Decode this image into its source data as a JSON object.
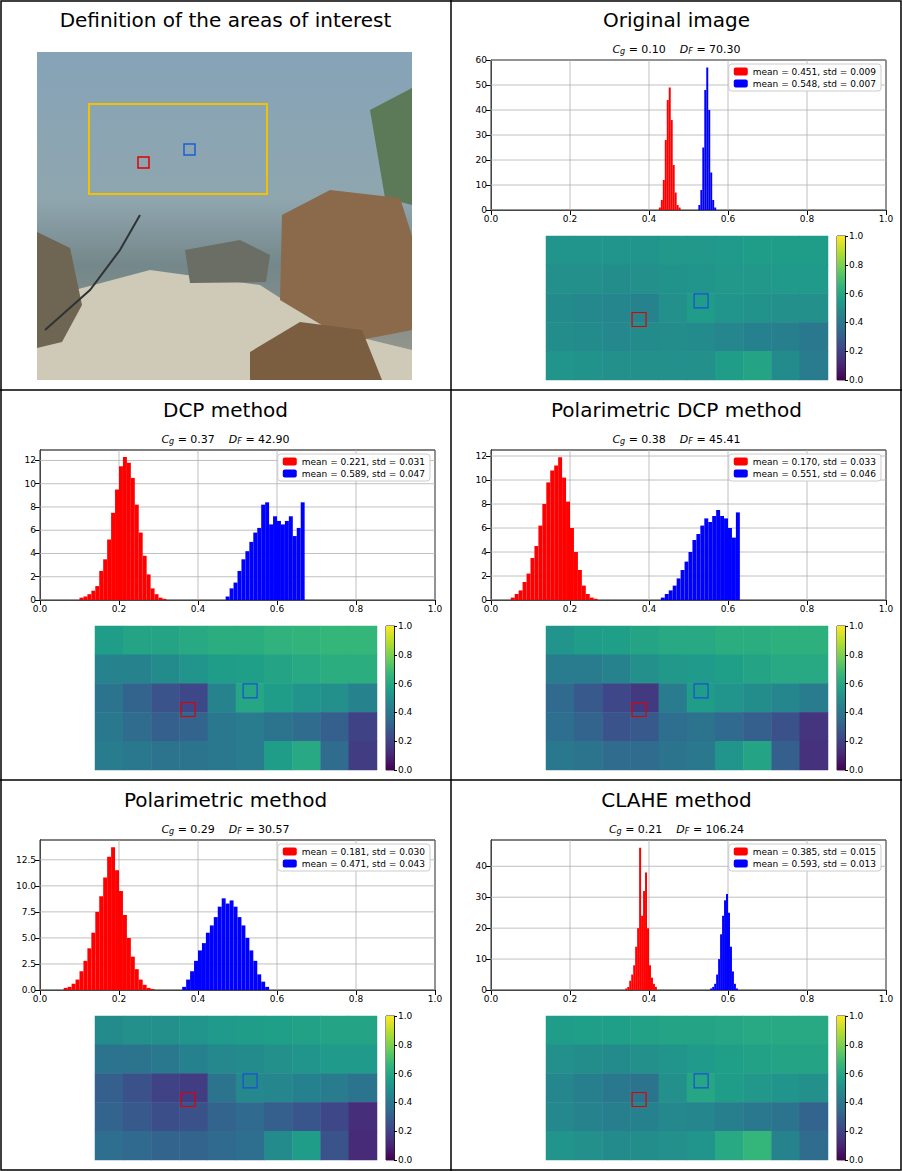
{
  "image_panel": {
    "title": "Definition of the areas of interest"
  },
  "chart_data": [
    {
      "type": "histogram",
      "title": "Original image",
      "metrics": [
        {
          "symbol": "C",
          "subscript": "g",
          "text": "= 0.10"
        },
        {
          "symbol": "D",
          "subscript": "F",
          "text": "= 70.30"
        }
      ],
      "xlim": [
        0,
        1
      ],
      "xticks": [
        {
          "value": 0,
          "label": "0.0"
        },
        0.2,
        0.4,
        0.6,
        0.8,
        {
          "value": 1,
          "label": "1.0"
        }
      ],
      "ylim": [
        0,
        60
      ],
      "yticks": [
        0,
        10,
        20,
        30,
        40,
        50,
        60
      ],
      "grid": true,
      "legend": "upper right",
      "series": [
        {
          "name": "mean = 0.451, std = 0.009",
          "color": "#ff0000",
          "bins": [
            0.425,
            0.43,
            0.435,
            0.44,
            0.445,
            0.45,
            0.455,
            0.46,
            0.465,
            0.47,
            0.475,
            0.48
          ],
          "values": [
            1,
            4,
            12,
            28,
            44,
            49,
            36,
            18,
            7,
            2,
            1
          ]
        },
        {
          "name": "mean = 0.548, std = 0.007",
          "color": "#0000ff",
          "bins": [
            0.525,
            0.53,
            0.535,
            0.54,
            0.545,
            0.55,
            0.555,
            0.56,
            0.565,
            0.57
          ],
          "values": [
            2,
            8,
            25,
            48,
            57,
            40,
            15,
            4,
            1
          ]
        }
      ],
      "heatmap": {
        "cells": [
          [
            0.52,
            0.52,
            0.52,
            0.52,
            0.53,
            0.53,
            0.54,
            0.55,
            0.55,
            0.55
          ],
          [
            0.5,
            0.5,
            0.49,
            0.5,
            0.51,
            0.52,
            0.53,
            0.53,
            0.54,
            0.54
          ],
          [
            0.48,
            0.47,
            0.46,
            0.45,
            0.5,
            0.55,
            0.52,
            0.51,
            0.5,
            0.5
          ],
          [
            0.49,
            0.48,
            0.47,
            0.48,
            0.49,
            0.48,
            0.46,
            0.44,
            0.43,
            0.4
          ],
          [
            0.52,
            0.51,
            0.5,
            0.5,
            0.5,
            0.5,
            0.55,
            0.58,
            0.48,
            0.42
          ]
        ],
        "colorbar_range": [
          0,
          1
        ],
        "colorbar_ticks": [
          {
            "value": 0,
            "label": "0.0"
          },
          0.2,
          0.4,
          0.6,
          0.8,
          {
            "value": 1,
            "label": "1.0"
          }
        ]
      }
    },
    {
      "type": "histogram",
      "title": "DCP method",
      "metrics": [
        {
          "symbol": "C",
          "subscript": "g",
          "text": "= 0.37"
        },
        {
          "symbol": "D",
          "subscript": "F",
          "text": "= 42.90"
        }
      ],
      "xlim": [
        0,
        1
      ],
      "xticks": [
        {
          "value": 0,
          "label": "0.0"
        },
        0.2,
        0.4,
        0.6,
        0.8,
        {
          "value": 1,
          "label": "1.0"
        }
      ],
      "ylim": [
        0,
        12.9
      ],
      "yticks": [
        0,
        2,
        4,
        6,
        8,
        10,
        12
      ],
      "grid": true,
      "legend": "upper right",
      "series": [
        {
          "name": "mean = 0.221, std = 0.031",
          "color": "#ff0000",
          "bins": [
            0.1,
            0.11,
            0.12,
            0.13,
            0.14,
            0.15,
            0.16,
            0.17,
            0.18,
            0.19,
            0.2,
            0.21,
            0.22,
            0.23,
            0.24,
            0.25,
            0.26,
            0.27,
            0.28,
            0.29,
            0.3,
            0.31,
            0.32
          ],
          "values": [
            0.2,
            0.3,
            0.5,
            0.8,
            1.2,
            2.5,
            3.5,
            5.2,
            7.5,
            9.5,
            11.5,
            12.3,
            11.8,
            10.5,
            8.2,
            5.8,
            3.8,
            2.2,
            1.0,
            0.5,
            0.2,
            0.1
          ]
        },
        {
          "name": "mean = 0.589, std = 0.047",
          "color": "#0000ff",
          "bins": [
            0.47,
            0.48,
            0.49,
            0.5,
            0.51,
            0.52,
            0.53,
            0.54,
            0.55,
            0.56,
            0.57,
            0.58,
            0.59,
            0.6,
            0.61,
            0.62,
            0.63,
            0.64,
            0.65,
            0.66,
            0.67
          ],
          "values": [
            0.3,
            1.0,
            1.5,
            2.5,
            3.5,
            4.2,
            5.0,
            5.8,
            6.2,
            8.2,
            8.4,
            6.5,
            7.2,
            6.8,
            6.5,
            6.8,
            7.2,
            5.5,
            6.2,
            8.4
          ]
        }
      ],
      "heatmap": {
        "cells": [
          [
            0.55,
            0.58,
            0.58,
            0.6,
            0.62,
            0.62,
            0.64,
            0.65,
            0.66,
            0.66
          ],
          [
            0.45,
            0.45,
            0.48,
            0.52,
            0.55,
            0.56,
            0.58,
            0.6,
            0.62,
            0.62
          ],
          [
            0.38,
            0.32,
            0.26,
            0.22,
            0.45,
            0.59,
            0.55,
            0.52,
            0.5,
            0.45
          ],
          [
            0.4,
            0.35,
            0.3,
            0.32,
            0.4,
            0.42,
            0.38,
            0.35,
            0.3,
            0.2
          ],
          [
            0.42,
            0.4,
            0.38,
            0.38,
            0.4,
            0.42,
            0.55,
            0.6,
            0.35,
            0.18
          ]
        ],
        "colorbar_range": [
          0,
          1
        ],
        "colorbar_ticks": [
          {
            "value": 0,
            "label": "0.0"
          },
          0.2,
          0.4,
          0.6,
          0.8,
          {
            "value": 1,
            "label": "1.0"
          }
        ]
      }
    },
    {
      "type": "histogram",
      "title": "Polarimetric DCP method",
      "metrics": [
        {
          "symbol": "C",
          "subscript": "g",
          "text": "= 0.38"
        },
        {
          "symbol": "D",
          "subscript": "F",
          "text": "= 45.41"
        }
      ],
      "xlim": [
        0,
        1
      ],
      "xticks": [
        {
          "value": 0,
          "label": "0.0"
        },
        0.2,
        0.4,
        0.6,
        0.8,
        {
          "value": 1,
          "label": "1.0"
        }
      ],
      "ylim": [
        0,
        12.5
      ],
      "yticks": [
        0,
        2,
        4,
        6,
        8,
        10,
        12
      ],
      "grid": true,
      "legend": "upper right",
      "series": [
        {
          "name": "mean = 0.170, std = 0.033",
          "color": "#ff0000",
          "bins": [
            0.05,
            0.06,
            0.07,
            0.08,
            0.09,
            0.1,
            0.11,
            0.12,
            0.13,
            0.14,
            0.15,
            0.16,
            0.17,
            0.18,
            0.19,
            0.2,
            0.21,
            0.22,
            0.23,
            0.24,
            0.25,
            0.26,
            0.27
          ],
          "values": [
            0.2,
            0.5,
            0.8,
            1.5,
            2.2,
            3.5,
            4.5,
            6.2,
            8.0,
            9.8,
            10.8,
            11.2,
            11.9,
            10.2,
            8.2,
            6.0,
            4.0,
            2.5,
            1.2,
            0.5,
            0.2,
            0.1
          ]
        },
        {
          "name": "mean = 0.551, std = 0.046",
          "color": "#0000ff",
          "bins": [
            0.43,
            0.44,
            0.45,
            0.46,
            0.47,
            0.48,
            0.49,
            0.5,
            0.51,
            0.52,
            0.53,
            0.54,
            0.55,
            0.56,
            0.57,
            0.58,
            0.59,
            0.6,
            0.61,
            0.62,
            0.63
          ],
          "values": [
            0.2,
            0.5,
            0.8,
            1.2,
            1.8,
            2.5,
            3.2,
            4.0,
            5.0,
            5.5,
            6.2,
            6.8,
            6.5,
            7.0,
            7.5,
            7.0,
            6.8,
            6.0,
            5.2,
            7.3
          ]
        }
      ],
      "heatmap": {
        "cells": [
          [
            0.52,
            0.55,
            0.56,
            0.58,
            0.6,
            0.6,
            0.62,
            0.62,
            0.63,
            0.63
          ],
          [
            0.42,
            0.42,
            0.45,
            0.5,
            0.53,
            0.54,
            0.56,
            0.58,
            0.6,
            0.6
          ],
          [
            0.34,
            0.28,
            0.22,
            0.17,
            0.42,
            0.55,
            0.52,
            0.49,
            0.46,
            0.42
          ],
          [
            0.36,
            0.32,
            0.26,
            0.28,
            0.36,
            0.38,
            0.34,
            0.3,
            0.25,
            0.15
          ],
          [
            0.4,
            0.38,
            0.35,
            0.35,
            0.38,
            0.4,
            0.52,
            0.58,
            0.3,
            0.14
          ]
        ],
        "colorbar_range": [
          0,
          1
        ],
        "colorbar_ticks": [
          {
            "value": 0,
            "label": "0.0"
          },
          0.2,
          0.4,
          0.6,
          0.8,
          {
            "value": 1,
            "label": "1.0"
          }
        ]
      }
    },
    {
      "type": "histogram",
      "title": "Polarimetric method",
      "metrics": [
        {
          "symbol": "C",
          "subscript": "g",
          "text": "= 0.29"
        },
        {
          "symbol": "D",
          "subscript": "F",
          "text": "= 30.57"
        }
      ],
      "xlim": [
        0,
        1
      ],
      "xticks": [
        {
          "value": 0,
          "label": "0.0"
        },
        0.2,
        0.4,
        0.6,
        0.8,
        {
          "value": 1,
          "label": "1.0"
        }
      ],
      "ylim": [
        0,
        14.4
      ],
      "yticks": [
        {
          "value": 0,
          "label": "0.0"
        },
        2.5,
        {
          "value": 5,
          "label": "5.0"
        },
        7.5,
        {
          "value": 10,
          "label": "10.0"
        },
        12.5
      ],
      "grid": true,
      "legend": "upper right",
      "series": [
        {
          "name": "mean = 0.181, std = 0.030",
          "color": "#ff0000",
          "bins": [
            0.06,
            0.07,
            0.08,
            0.09,
            0.1,
            0.11,
            0.12,
            0.13,
            0.14,
            0.15,
            0.16,
            0.17,
            0.18,
            0.19,
            0.2,
            0.21,
            0.22,
            0.23,
            0.24,
            0.25,
            0.26,
            0.27,
            0.28,
            0.29
          ],
          "values": [
            0.2,
            0.3,
            0.6,
            1.0,
            1.8,
            2.8,
            4.0,
            5.5,
            7.5,
            9.0,
            10.8,
            12.8,
            13.7,
            11.5,
            9.5,
            7.2,
            5.0,
            3.2,
            2.0,
            1.0,
            0.5,
            0.2,
            0.1
          ]
        },
        {
          "name": "mean = 0.471, std = 0.043",
          "color": "#0000ff",
          "bins": [
            0.36,
            0.37,
            0.38,
            0.39,
            0.4,
            0.41,
            0.42,
            0.43,
            0.44,
            0.45,
            0.46,
            0.47,
            0.48,
            0.49,
            0.5,
            0.51,
            0.52,
            0.53,
            0.54,
            0.55,
            0.56,
            0.57,
            0.58
          ],
          "values": [
            0.3,
            1.0,
            1.8,
            2.8,
            3.8,
            4.5,
            5.5,
            6.2,
            7.0,
            8.0,
            8.8,
            8.3,
            8.6,
            8.0,
            7.0,
            6.2,
            5.0,
            3.8,
            2.8,
            1.5,
            0.8,
            0.3
          ]
        }
      ],
      "heatmap": {
        "cells": [
          [
            0.48,
            0.5,
            0.5,
            0.52,
            0.54,
            0.55,
            0.56,
            0.57,
            0.58,
            0.58
          ],
          [
            0.38,
            0.38,
            0.4,
            0.44,
            0.47,
            0.48,
            0.5,
            0.52,
            0.54,
            0.54
          ],
          [
            0.3,
            0.25,
            0.2,
            0.18,
            0.38,
            0.47,
            0.46,
            0.44,
            0.42,
            0.38
          ],
          [
            0.32,
            0.28,
            0.24,
            0.25,
            0.32,
            0.34,
            0.3,
            0.27,
            0.22,
            0.13
          ],
          [
            0.36,
            0.34,
            0.32,
            0.32,
            0.34,
            0.36,
            0.48,
            0.55,
            0.26,
            0.12
          ]
        ],
        "colorbar_range": [
          0,
          1
        ],
        "colorbar_ticks": [
          {
            "value": 0,
            "label": "0.0"
          },
          0.2,
          0.4,
          0.6,
          0.8,
          {
            "value": 1,
            "label": "1.0"
          }
        ]
      }
    },
    {
      "type": "histogram",
      "title": "CLAHE method",
      "metrics": [
        {
          "symbol": "C",
          "subscript": "g",
          "text": "= 0.21"
        },
        {
          "symbol": "D",
          "subscript": "F",
          "text": "= 106.24"
        }
      ],
      "xlim": [
        0,
        1
      ],
      "xticks": [
        {
          "value": 0,
          "label": "0.0"
        },
        0.2,
        0.4,
        0.6,
        0.8,
        {
          "value": 1,
          "label": "1.0"
        }
      ],
      "ylim": [
        0,
        48.5
      ],
      "yticks": [
        0,
        10,
        20,
        30,
        40
      ],
      "grid": true,
      "legend": "upper right",
      "series": [
        {
          "name": "mean = 0.385, std = 0.015",
          "color": "#ff0000",
          "bins": [
            0.34,
            0.345,
            0.35,
            0.355,
            0.36,
            0.365,
            0.37,
            0.375,
            0.38,
            0.385,
            0.39,
            0.395,
            0.4,
            0.405,
            0.41,
            0.415,
            0.42
          ],
          "values": [
            0.5,
            1,
            3,
            5,
            8,
            14,
            20,
            46,
            24,
            32,
            38,
            20,
            8,
            4,
            2,
            1
          ]
        },
        {
          "name": "mean = 0.593, std = 0.013",
          "color": "#0000ff",
          "bins": [
            0.555,
            0.56,
            0.565,
            0.57,
            0.575,
            0.58,
            0.585,
            0.59,
            0.595,
            0.6,
            0.605,
            0.61,
            0.615,
            0.62,
            0.625
          ],
          "values": [
            0.5,
            1,
            2,
            5,
            10,
            18,
            24,
            29,
            31,
            25,
            14,
            6,
            2,
            0.5
          ]
        }
      ],
      "heatmap": {
        "cells": [
          [
            0.55,
            0.56,
            0.56,
            0.57,
            0.58,
            0.58,
            0.59,
            0.6,
            0.6,
            0.6
          ],
          [
            0.5,
            0.49,
            0.48,
            0.5,
            0.52,
            0.54,
            0.56,
            0.57,
            0.58,
            0.58
          ],
          [
            0.46,
            0.43,
            0.4,
            0.385,
            0.5,
            0.593,
            0.55,
            0.53,
            0.52,
            0.5
          ],
          [
            0.47,
            0.45,
            0.43,
            0.44,
            0.47,
            0.46,
            0.43,
            0.4,
            0.38,
            0.32
          ],
          [
            0.52,
            0.5,
            0.48,
            0.49,
            0.5,
            0.52,
            0.6,
            0.66,
            0.45,
            0.35
          ]
        ],
        "colorbar_range": [
          0,
          1
        ],
        "colorbar_ticks": [
          {
            "value": 0,
            "label": "0.0"
          },
          0.2,
          0.4,
          0.6,
          0.8,
          {
            "value": 1,
            "label": "1.0"
          }
        ]
      }
    }
  ]
}
